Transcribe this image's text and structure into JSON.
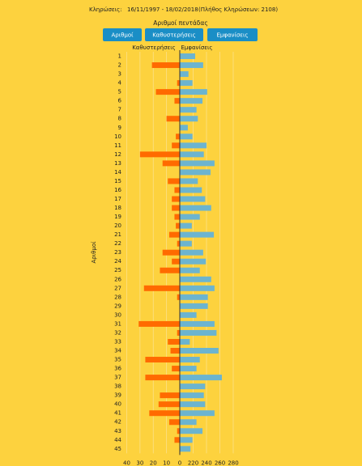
{
  "header": {
    "label": "Κληρώσεις:",
    "range": "16/11/1997 - 18/02/2018",
    "count": "(Πλήθος Κληρώσεων: 2108)"
  },
  "buttons": [
    "Αριθμοί",
    "Καθυστερήσεις",
    "Εμφανίσεις"
  ],
  "chart_data": {
    "type": "bar",
    "orientation": "horizontal",
    "title": "Αριθμοί πεντάδας",
    "y_label": "Αριθμοί",
    "categories": [
      "1",
      "2",
      "3",
      "4",
      "5",
      "6",
      "7",
      "8",
      "9",
      "10",
      "11",
      "12",
      "13",
      "14",
      "15",
      "16",
      "17",
      "18",
      "19",
      "20",
      "21",
      "22",
      "23",
      "24",
      "25",
      "26",
      "27",
      "28",
      "29",
      "30",
      "31",
      "32",
      "33",
      "34",
      "35",
      "36",
      "37",
      "38",
      "39",
      "40",
      "41",
      "42",
      "43",
      "44",
      "45"
    ],
    "series": [
      {
        "name": "Καθυστερήσεις",
        "color": "#ff6a00",
        "axis": "x",
        "values": [
          0,
          21,
          0,
          2,
          18,
          4,
          0,
          10,
          0,
          3,
          6,
          30,
          13,
          0,
          9,
          4,
          6,
          6,
          4,
          3,
          8,
          2,
          13,
          6,
          15,
          0,
          27,
          2,
          0,
          0,
          31,
          2,
          9,
          7,
          26,
          6,
          26,
          0,
          15,
          16,
          23,
          8,
          2,
          4,
          0
        ]
      },
      {
        "name": "Εμφανίσεις",
        "color": "#6cb4cf",
        "axis": "x2",
        "values": [
          223,
          235,
          213,
          219,
          241,
          234,
          225,
          227,
          212,
          219,
          240,
          236,
          252,
          246,
          227,
          233,
          238,
          247,
          230,
          218,
          251,
          218,
          235,
          239,
          230,
          247,
          252,
          242,
          242,
          225,
          252,
          255,
          215,
          258,
          230,
          225,
          263,
          238,
          236,
          238,
          252,
          225,
          234,
          219,
          216
        ]
      }
    ],
    "xlim": [
      0,
      40
    ],
    "xticks": [
      40,
      30,
      20,
      10,
      0
    ],
    "x2lim": [
      200,
      280
    ],
    "x2ticks": [
      220,
      240,
      260,
      280
    ],
    "grid": true
  }
}
